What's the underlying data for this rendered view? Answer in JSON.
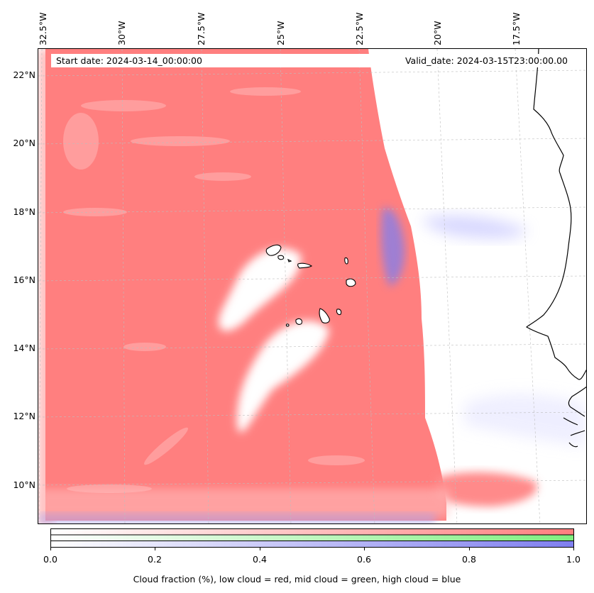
{
  "header": {
    "start_date": "Start date: 2024-03-14_00:00:00",
    "valid_date": "Valid_date: 2024-03-15T23:00:00.00"
  },
  "map": {
    "lon_labels": [
      "32.5°W",
      "30°W",
      "27.5°W",
      "25°W",
      "22.5°W",
      "20°W",
      "17.5°W"
    ],
    "lat_labels": [
      "22°N",
      "20°N",
      "18°N",
      "16°N",
      "14°N",
      "12°N",
      "10°N"
    ],
    "extent": {
      "lon_min": -32.8,
      "lon_max": -15.2,
      "lat_min": 8.9,
      "lat_max": 22.8
    },
    "layers": [
      {
        "name": "low cloud",
        "color": "#ff7f7f"
      },
      {
        "name": "mid cloud",
        "color": "#7fff7f"
      },
      {
        "name": "high cloud",
        "color": "#7f7fff"
      }
    ]
  },
  "colorbar": {
    "ticks": [
      "0.0",
      "0.2",
      "0.4",
      "0.6",
      "0.8",
      "1.0"
    ],
    "label": "Cloud fraction (%), low cloud = red, mid cloud = green, high cloud = blue",
    "rows": [
      {
        "name": "low",
        "color": "#ff7f7f"
      },
      {
        "name": "mid",
        "color": "#7fef7f"
      },
      {
        "name": "high",
        "color": "#7f7fef"
      }
    ]
  }
}
